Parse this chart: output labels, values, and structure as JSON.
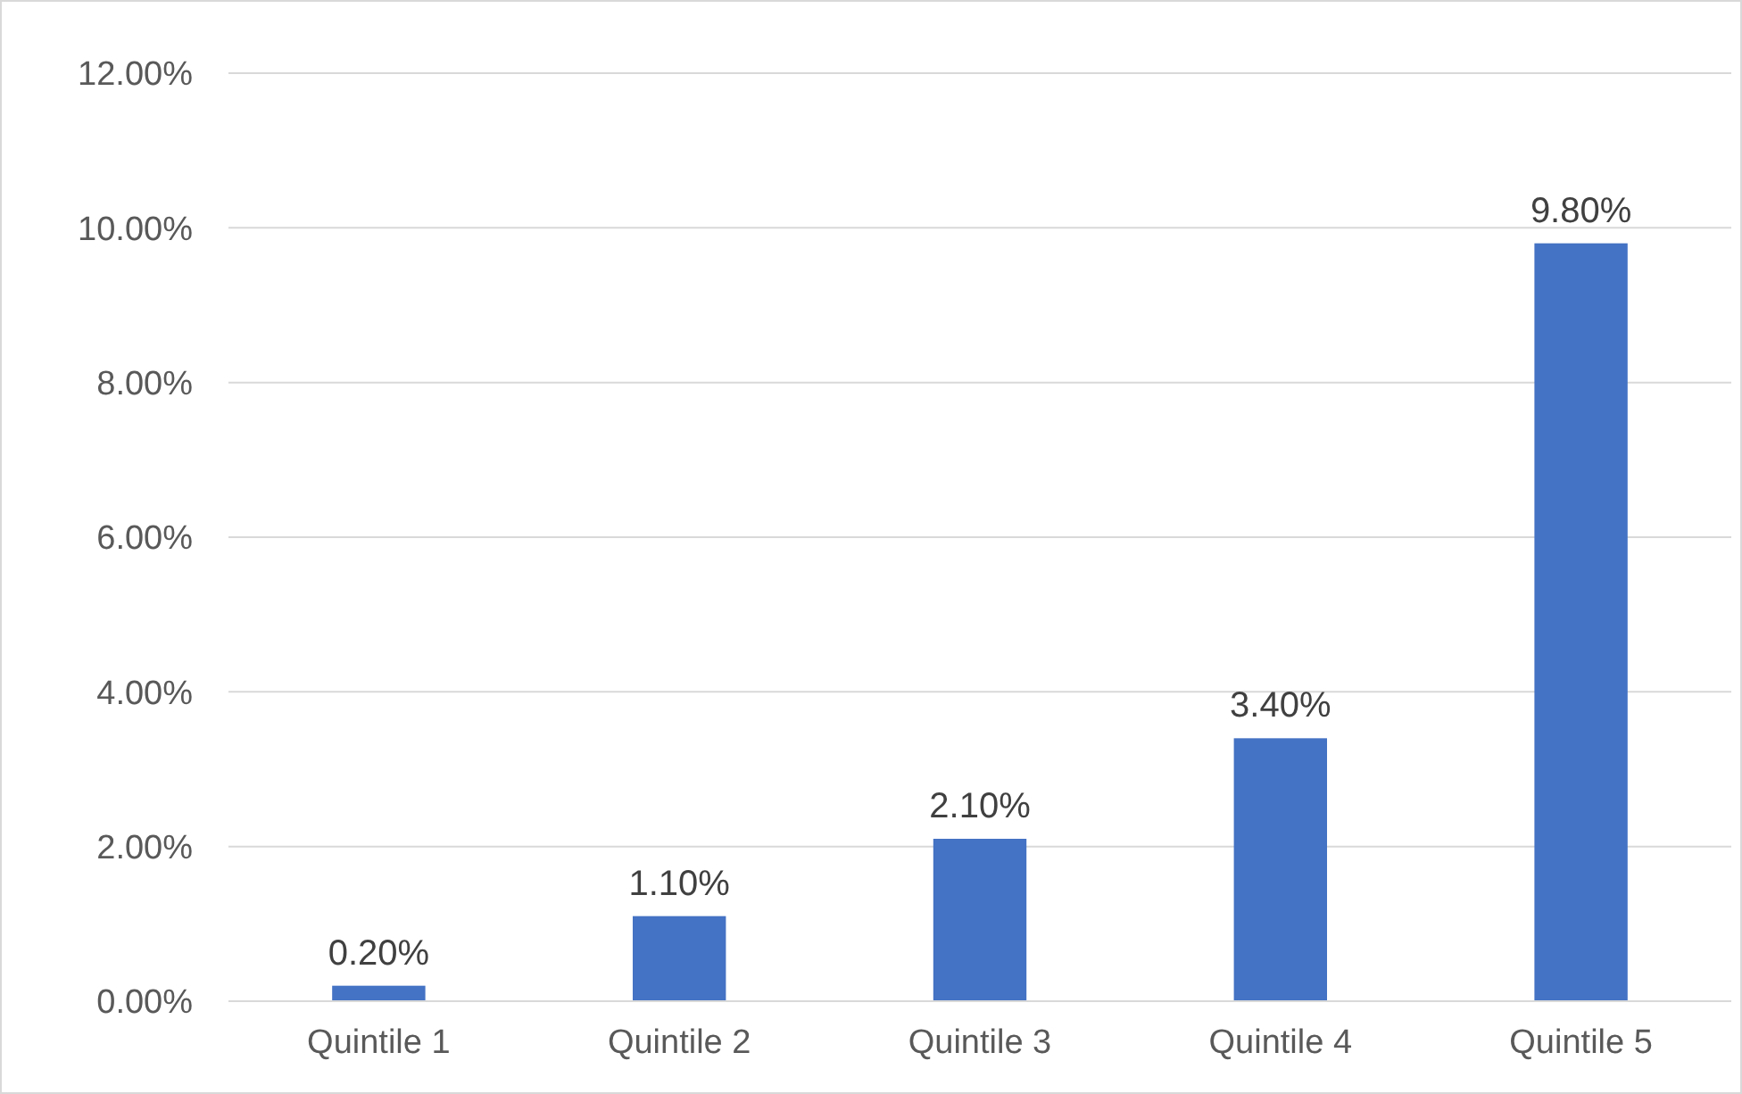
{
  "chart_data": {
    "type": "bar",
    "categories": [
      "Quintile 1",
      "Quintile 2",
      "Quintile 3",
      "Quintile 4",
      "Quintile 5"
    ],
    "values": [
      0.2,
      1.1,
      2.1,
      3.4,
      9.8
    ],
    "value_labels": [
      "0.20%",
      "1.10%",
      "2.10%",
      "3.40%",
      "9.80%"
    ],
    "color": "#4472c4",
    "ylim": [
      0,
      12
    ],
    "yticks": [
      {
        "value": 0,
        "label": "0.00%"
      },
      {
        "value": 2,
        "label": "2.00%"
      },
      {
        "value": 4,
        "label": "4.00%"
      },
      {
        "value": 6,
        "label": "6.00%"
      },
      {
        "value": 8,
        "label": "8.00%"
      },
      {
        "value": 10,
        "label": "10.00%"
      },
      {
        "value": 12,
        "label": "12.00%"
      }
    ],
    "grid": "y"
  }
}
